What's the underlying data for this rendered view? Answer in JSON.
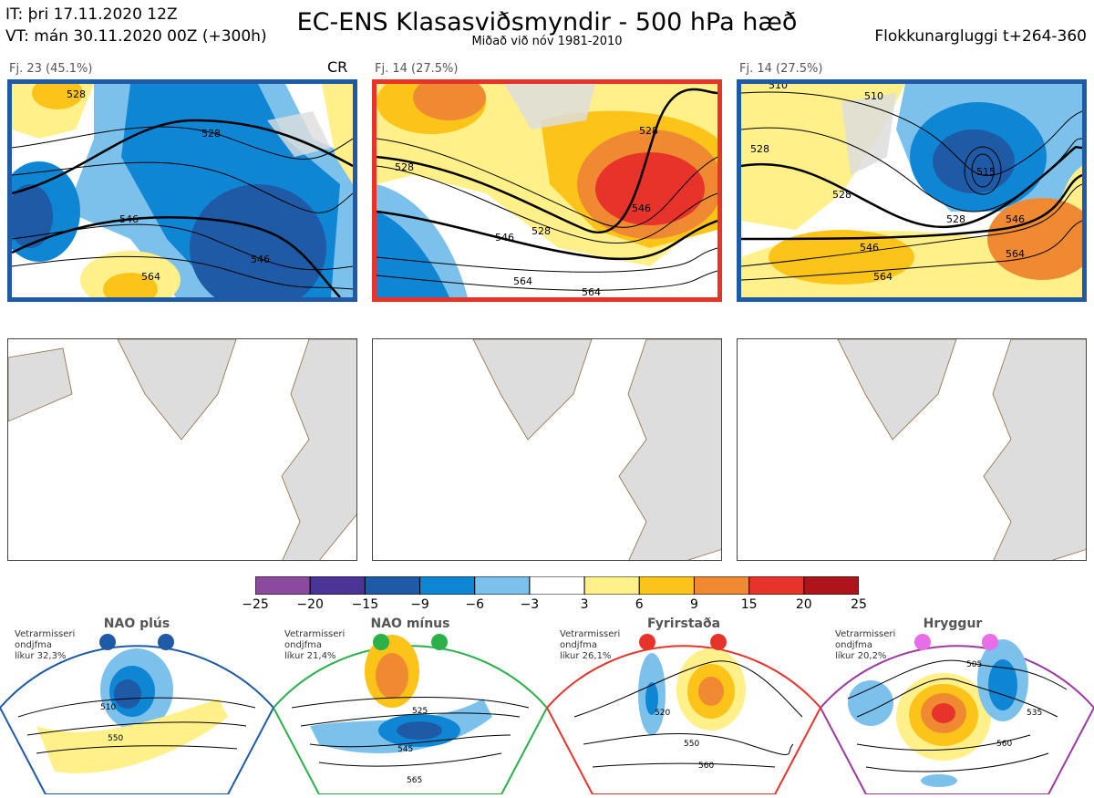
{
  "header": {
    "init_time": "IT: þri 17.11.2020 12Z",
    "valid_time": "VT: mán 30.11.2020 00Z  (+300h)",
    "title": "EC-ENS Klasasviðsmyndir - 500 hPa hæð",
    "subtitle": "Miðað við nóv 1981-2010",
    "window": "Flokkunargluggi t+264-360"
  },
  "clusters": [
    {
      "label": "Fj. 23 (45.1%)",
      "tag": "CR",
      "border_color": "#1f5aa6",
      "contour_labels": [
        "528",
        "528",
        "546",
        "546",
        "564"
      ]
    },
    {
      "label": "Fj. 14 (27.5%)",
      "tag": "",
      "border_color": "#e8332b",
      "contour_labels": [
        "528",
        "528",
        "546",
        "546",
        "528",
        "564",
        "564"
      ]
    },
    {
      "label": "Fj. 14 (27.5%)",
      "tag": "",
      "border_color": "#1f5aa6",
      "contour_labels": [
        "510",
        "510",
        "528",
        "528",
        "528",
        "546",
        "546",
        "564",
        "564",
        "515"
      ]
    }
  ],
  "colorbar": {
    "ticks": [
      "−25",
      "−20",
      "−15",
      "−9",
      "−6",
      "−3",
      "3",
      "6",
      "9",
      "15",
      "20",
      "25"
    ],
    "colors": [
      "#8c4a9e",
      "#4a3596",
      "#1f5aa6",
      "#0f86d4",
      "#7cc1ec",
      "#ffffff",
      "#fff08a",
      "#fcc419",
      "#f08a32",
      "#e8332b",
      "#b0141b"
    ]
  },
  "regimes": [
    {
      "name": "NAO plús",
      "note_lines": [
        "Vetrarmisseri",
        "ondjfma",
        "líkur 32,3%"
      ],
      "color": "#1f5aa6",
      "contour_labels": [
        "510",
        "550"
      ]
    },
    {
      "name": "NAO mínus",
      "note_lines": [
        "Vetrarmisseri",
        "ondjfma",
        "líkur 21,4%"
      ],
      "color": "#2bb04a",
      "contour_labels": [
        "525",
        "545",
        "565"
      ]
    },
    {
      "name": "Fyrirstaða",
      "note_lines": [
        "Vetrarmisseri",
        "ondjfma",
        "líkur 26,1%"
      ],
      "color": "#e8332b",
      "contour_labels": [
        "520",
        "550",
        "560"
      ]
    },
    {
      "name": "Hryggur",
      "note_lines": [
        "Vetrarmisseri",
        "ondjfma",
        "líkur 20,2%"
      ],
      "color": "#e86ee8",
      "contour_labels": [
        "505",
        "535",
        "560"
      ]
    }
  ]
}
